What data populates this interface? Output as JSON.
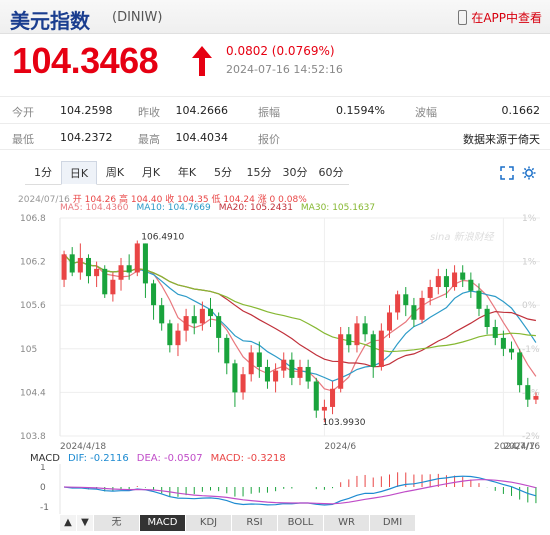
{
  "header": {
    "title": "美元指数",
    "code": "(DINIW)",
    "app_link": "在APP中查看"
  },
  "quote": {
    "price": "104.3468",
    "change": "0.0802 (0.0769%)",
    "time": "2024-07-16 14:52:16"
  },
  "stats": [
    [
      {
        "label": "今开",
        "value": "104.2598"
      },
      {
        "label": "昨收",
        "value": "104.2666"
      },
      {
        "label": "振幅",
        "value": "0.1594%"
      },
      {
        "label": "波幅",
        "value": "0.1662"
      }
    ],
    [
      {
        "label": "最低",
        "value": "104.2372"
      },
      {
        "label": "最高",
        "value": "104.4034"
      },
      {
        "label": "报价",
        "value": ""
      },
      {
        "label": "",
        "value": "数据来源于倚天"
      }
    ]
  ],
  "tabs": [
    "1分",
    "日K",
    "周K",
    "月K",
    "年K",
    "5分",
    "15分",
    "30分",
    "60分"
  ],
  "active_tab": 1,
  "info_line": {
    "date": "2024/07/16",
    "open": "开 104.26",
    "high": "高 104.40",
    "close": "收 104.35",
    "low": "低 104.24",
    "change": "涨 0",
    "pct": "0.08%"
  },
  "ma_labels": [
    {
      "text": "MA5: 104.4360",
      "color": "#e8787e"
    },
    {
      "text": "MA10: 104.7669",
      "color": "#2d9bc8"
    },
    {
      "text": "MA20: 105.2431",
      "color": "#c0303a"
    },
    {
      "text": "MA30: 105.1637",
      "color": "#86b832"
    }
  ],
  "macd_labels": [
    {
      "text": "MACD",
      "color": "#333333"
    },
    {
      "text": "DIF: -0.2116",
      "color": "#1e8bd1"
    },
    {
      "text": "DEA: -0.0507",
      "color": "#c04dc8"
    },
    {
      "text": "MACD: -0.3218",
      "color": "#e94545"
    }
  ],
  "bottom_tabs": [
    "▲",
    "▼",
    "无",
    "MACD",
    "KDJ",
    "RSI",
    "BOLL",
    "WR",
    "DMI"
  ],
  "bottom_active": 3,
  "watermark": "sina 新浪财经",
  "colors": {
    "up": "#e94545",
    "down": "#19a33c",
    "ma5": "#e8787e",
    "ma10": "#2d9bc8",
    "ma20": "#c0303a",
    "ma30": "#86b832",
    "dif": "#1e8bd1",
    "dea": "#c04dc8"
  },
  "chart_data": {
    "type": "candlestick",
    "y_ticks": [
      "106.8",
      "106.2",
      "105.6",
      "105",
      "104.4",
      "103.8"
    ],
    "y_range": [
      103.8,
      106.8
    ],
    "pct_ticks": [
      "1%",
      "1%",
      "0%",
      "-1%",
      "-1%",
      "-2%"
    ],
    "x_labels": [
      "2024/4/18",
      "2024/6",
      "2024/7",
      "2024/7/16"
    ],
    "x_label_index": [
      0,
      32,
      54,
      66
    ],
    "max_label": "106.4910",
    "max_index": 9,
    "min_label": "103.9930",
    "min_index": 33,
    "candles": [
      [
        105.95,
        106.3,
        106.35,
        105.85
      ],
      [
        106.3,
        106.05,
        106.4,
        106.0
      ],
      [
        106.05,
        106.25,
        106.45,
        105.95
      ],
      [
        106.25,
        106.0,
        106.3,
        105.9
      ],
      [
        106.0,
        106.1,
        106.2,
        105.85
      ],
      [
        106.1,
        105.75,
        106.15,
        105.7
      ],
      [
        105.75,
        105.95,
        106.05,
        105.65
      ],
      [
        105.95,
        106.15,
        106.25,
        105.8
      ],
      [
        106.15,
        106.05,
        106.3,
        105.95
      ],
      [
        106.05,
        106.45,
        106.49,
        106.0
      ],
      [
        106.45,
        105.9,
        106.45,
        105.7
      ],
      [
        105.9,
        105.6,
        105.95,
        105.4
      ],
      [
        105.6,
        105.35,
        105.7,
        105.25
      ],
      [
        105.35,
        105.05,
        105.4,
        104.95
      ],
      [
        105.05,
        105.25,
        105.35,
        104.9
      ],
      [
        105.25,
        105.45,
        105.55,
        105.1
      ],
      [
        105.45,
        105.35,
        105.6,
        105.2
      ],
      [
        105.35,
        105.55,
        105.65,
        105.25
      ],
      [
        105.55,
        105.45,
        105.7,
        105.3
      ],
      [
        105.45,
        105.15,
        105.5,
        104.95
      ],
      [
        105.15,
        104.8,
        105.2,
        104.65
      ],
      [
        104.8,
        104.4,
        104.85,
        104.2
      ],
      [
        104.4,
        104.65,
        104.75,
        104.3
      ],
      [
        104.65,
        104.95,
        105.05,
        104.55
      ],
      [
        104.95,
        104.75,
        105.1,
        104.6
      ],
      [
        104.75,
        104.55,
        104.85,
        104.45
      ],
      [
        104.55,
        104.7,
        104.8,
        104.4
      ],
      [
        104.7,
        104.85,
        104.95,
        104.6
      ],
      [
        104.85,
        104.6,
        104.95,
        104.5
      ],
      [
        104.6,
        104.75,
        104.85,
        104.5
      ],
      [
        104.75,
        104.55,
        104.85,
        104.45
      ],
      [
        104.55,
        104.15,
        104.6,
        104.05
      ],
      [
        104.15,
        104.2,
        104.3,
        103.99
      ],
      [
        104.2,
        104.45,
        104.55,
        104.1
      ],
      [
        104.45,
        105.2,
        105.3,
        104.4
      ],
      [
        105.2,
        105.05,
        105.3,
        104.95
      ],
      [
        105.05,
        105.35,
        105.45,
        104.95
      ],
      [
        105.35,
        105.2,
        105.45,
        105.1
      ],
      [
        105.2,
        104.75,
        105.25,
        104.6
      ],
      [
        104.75,
        105.25,
        105.35,
        104.7
      ],
      [
        105.25,
        105.5,
        105.6,
        105.15
      ],
      [
        105.5,
        105.75,
        105.8,
        105.4
      ],
      [
        105.75,
        105.6,
        105.85,
        105.45
      ],
      [
        105.6,
        105.4,
        105.7,
        105.3
      ],
      [
        105.4,
        105.7,
        105.8,
        105.35
      ],
      [
        105.7,
        105.85,
        105.95,
        105.6
      ],
      [
        105.85,
        106.0,
        106.1,
        105.75
      ],
      [
        106.0,
        105.85,
        106.1,
        105.7
      ],
      [
        105.85,
        106.05,
        106.15,
        105.8
      ],
      [
        106.05,
        105.95,
        106.15,
        105.85
      ],
      [
        105.95,
        105.8,
        106.05,
        105.7
      ],
      [
        105.8,
        105.55,
        105.9,
        105.45
      ],
      [
        105.55,
        105.3,
        105.6,
        105.2
      ],
      [
        105.3,
        105.15,
        105.4,
        105.05
      ],
      [
        105.15,
        105.0,
        105.25,
        104.9
      ],
      [
        105.0,
        104.95,
        105.1,
        104.85
      ],
      [
        104.95,
        104.5,
        105.0,
        104.4
      ],
      [
        104.5,
        104.3,
        104.6,
        104.2
      ],
      [
        104.3,
        104.35,
        104.4,
        104.24
      ]
    ]
  }
}
